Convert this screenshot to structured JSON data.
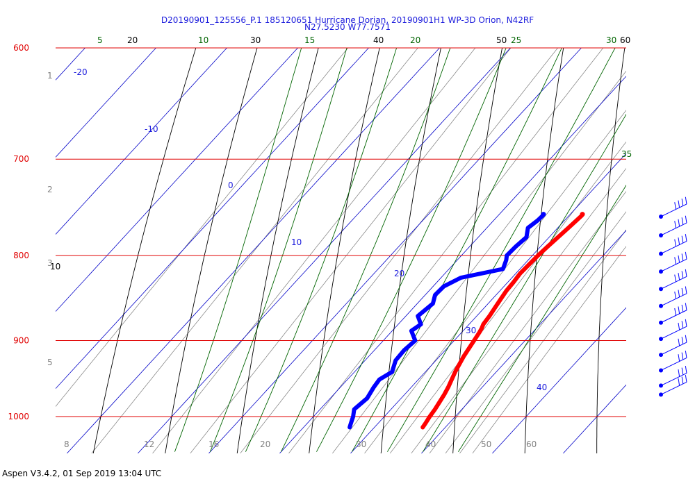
{
  "header": {
    "title_line1": "D20190901_125556_P.1 185120651 Hurricane Dorian, 20190901H1 WP-3D Orion, N42RF",
    "title_line2": "N27.5230 W77.7571"
  },
  "footer": {
    "text": "Aspen V3.4.2, 01 Sep 2019  13:04 UTC"
  },
  "colors": {
    "isobar": "#e00000",
    "isobar_label": "#e00000",
    "isotherm": "#0000c8",
    "isotherm_label": "#1a1adc",
    "dry_adiabat": "#000000",
    "moist_adiabat": "#006400",
    "mixing_ratio": "#808080",
    "temperature": "#ff0000",
    "dewpoint": "#0000ff",
    "wind_barb": "#0000ff"
  },
  "chart_data": {
    "type": "skew-t",
    "pressure_levels_hpa": [
      "600",
      "700",
      "800",
      "900",
      "1000"
    ],
    "isotherm_labels_c": [
      "-20",
      "-10",
      "0",
      "10",
      "20",
      "30",
      "40"
    ],
    "dry_adiabat_labels": [
      "20",
      "30",
      "40",
      "50",
      "60",
      "10"
    ],
    "moist_adiabat_labels": [
      "5",
      "10",
      "15",
      "20",
      "25",
      "30",
      "35"
    ],
    "mixing_ratio_labels": [
      "8",
      "12",
      "16",
      "20",
      "30",
      "40",
      "50",
      "60"
    ],
    "height_km_labels": [
      "1",
      "2",
      "3",
      "5"
    ],
    "temperature_profile": {
      "pressure_hpa": [
        757,
        770,
        790,
        800,
        810,
        820,
        830,
        840,
        850,
        860,
        870,
        880,
        885,
        890,
        900,
        910,
        920,
        930,
        940,
        950,
        960,
        970,
        980,
        990,
        1000,
        1010,
        1015
      ],
      "temp_c": [
        21.8,
        21.5,
        21.0,
        20.8,
        20.7,
        20.6,
        20.8,
        20.9,
        21.2,
        21.5,
        21.8,
        22.0,
        22.3,
        22.5,
        22.8,
        23.1,
        23.4,
        23.8,
        24.2,
        24.7,
        25.2,
        25.6,
        25.9,
        26.2,
        26.4,
        26.7,
        26.8
      ]
    },
    "dewpoint_profile": {
      "pressure_hpa": [
        757,
        762,
        770,
        780,
        790,
        800,
        805,
        815,
        825,
        835,
        845,
        855,
        870,
        880,
        888,
        900,
        912,
        925,
        940,
        950,
        960,
        975,
        990,
        1000,
        1010,
        1015
      ],
      "dewpoint_c": [
        16.3,
        16.2,
        15.8,
        16.8,
        16.5,
        16.4,
        16.9,
        17.6,
        12.8,
        11.5,
        11.4,
        12.2,
        11.7,
        13.2,
        12.7,
        14.5,
        14.2,
        14.3,
        15.3,
        14.5,
        14.7,
        15.2,
        14.8,
        15.6,
        16.2,
        16.5
      ]
    },
    "wind_barbs": [
      {
        "pressure_hpa": 758,
        "barbs": 4
      },
      {
        "pressure_hpa": 778,
        "barbs": 4
      },
      {
        "pressure_hpa": 798,
        "barbs": 4
      },
      {
        "pressure_hpa": 818,
        "barbs": 4
      },
      {
        "pressure_hpa": 838,
        "barbs": 4
      },
      {
        "pressure_hpa": 858,
        "barbs": 4
      },
      {
        "pressure_hpa": 878,
        "barbs": 4
      },
      {
        "pressure_hpa": 898,
        "barbs": 3
      },
      {
        "pressure_hpa": 918,
        "barbs": 3
      },
      {
        "pressure_hpa": 938,
        "barbs": 3
      },
      {
        "pressure_hpa": 958,
        "barbs": 3
      },
      {
        "pressure_hpa": 970,
        "barbs": 3
      }
    ]
  }
}
